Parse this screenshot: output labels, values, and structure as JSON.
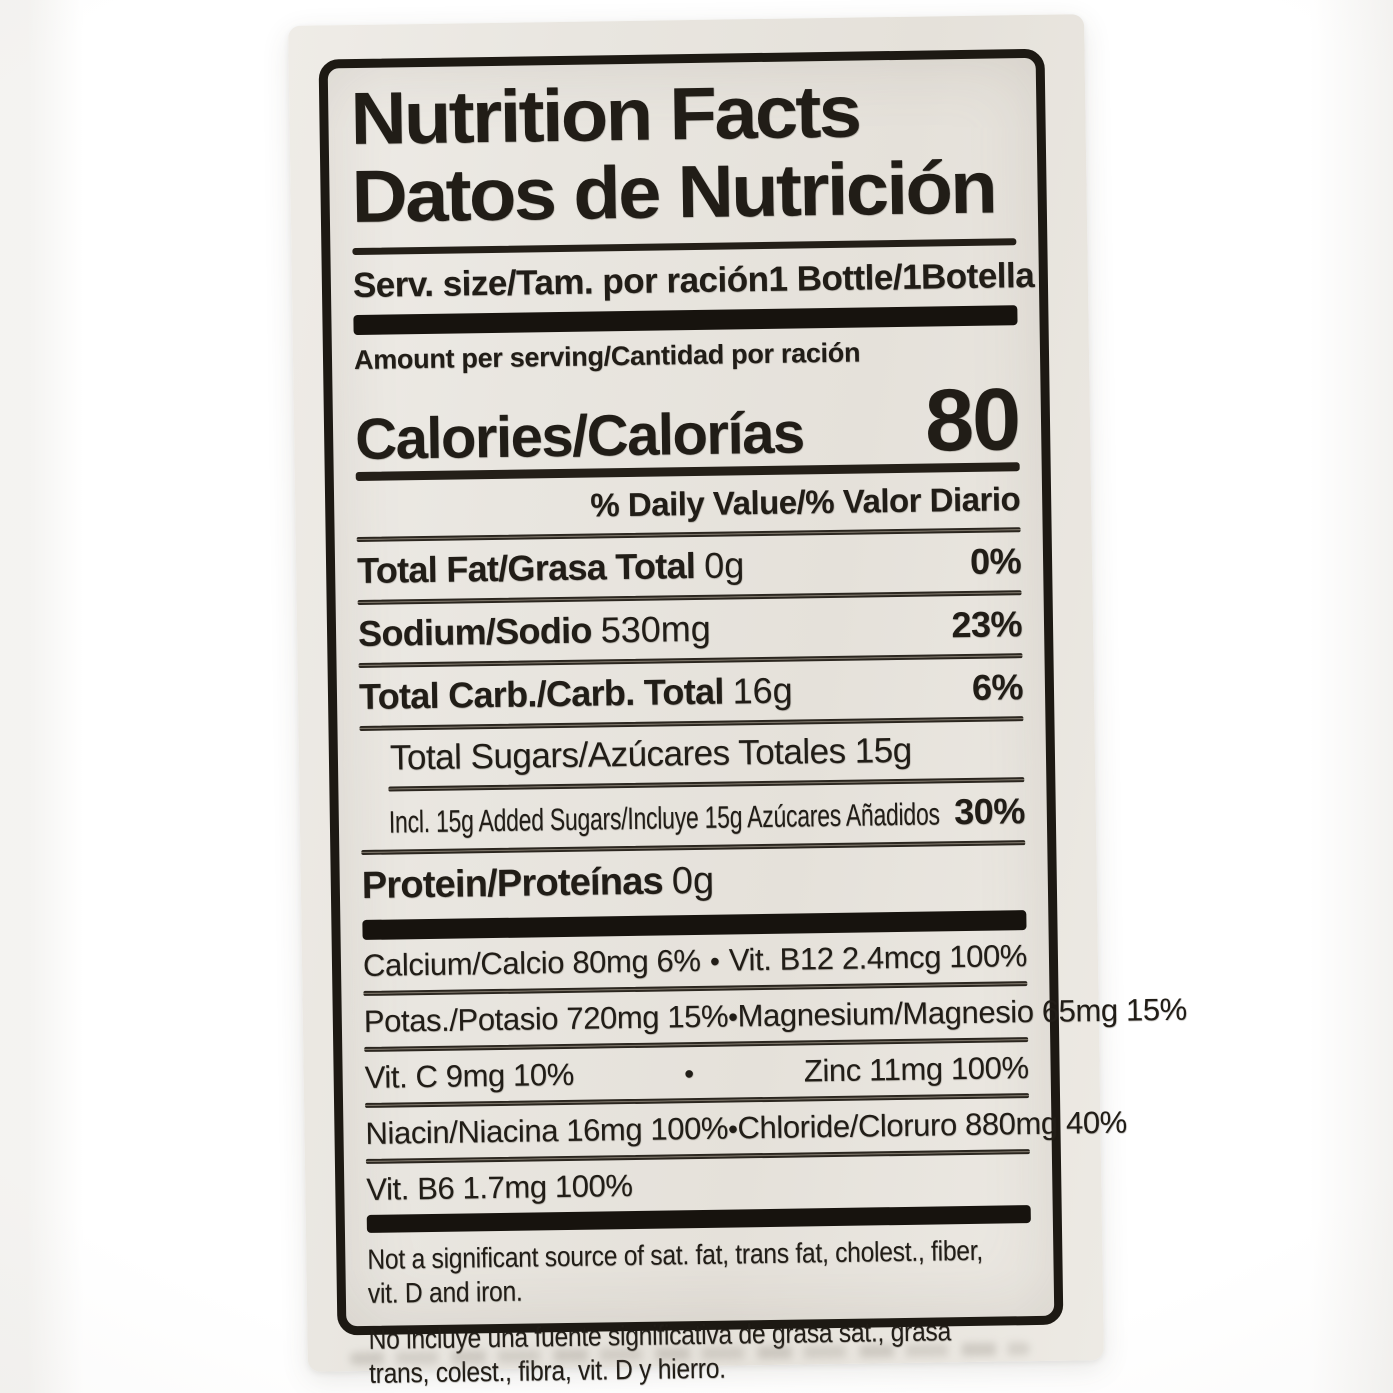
{
  "label": {
    "title_en": "Nutrition Facts",
    "title_es": "Datos de Nutrición",
    "serving_label": "Serv. size/Tam. por ración",
    "serving_value": "1 Bottle/1Botella",
    "amount_per_serving": "Amount per serving/Cantidad por ración",
    "calories_label": "Calories/Calorías",
    "calories_value": "80",
    "daily_value_header": "% Daily Value/% Valor Diario",
    "nutrients": [
      {
        "name": "Total Fat/Grasa Total",
        "amount": "0g",
        "dv": "0%"
      },
      {
        "name": "Sodium/Sodio",
        "amount": "530mg",
        "dv": "23%"
      },
      {
        "name": "Total Carb./Carb. Total",
        "amount": "16g",
        "dv": "6%"
      }
    ],
    "total_sugars": "Total Sugars/Azúcares Totales 15g",
    "added_sugars_text": "Incl. 15g Added Sugars/Incluye 15g Azúcares Añadidos",
    "added_sugars_dv": "30%",
    "protein_name": "Protein/Proteínas",
    "protein_amount": "0g",
    "micronutrients": [
      {
        "left": "Calcium/Calcio 80mg 6%",
        "bullet": "•",
        "right": "Vit. B12 2.4mcg 100%"
      },
      {
        "left": "Potas./Potasio 720mg 15%",
        "bullet": "•",
        "right": "Magnesium/Magnesio 65mg 15%"
      },
      {
        "left": "Vit. C 9mg 10%",
        "bullet": "•",
        "right": "Zinc 11mg 100%"
      },
      {
        "left": "Niacin/Niacina 16mg 100%",
        "bullet": "•",
        "right": "Chloride/Cloruro 880mg 40%"
      },
      {
        "left": "Vit. B6 1.7mg 100%",
        "bullet": "",
        "right": ""
      }
    ],
    "footnote_en": [
      "Not a significant source of sat. fat, trans fat, cholest., fiber,",
      "vit. D and iron."
    ],
    "footnote_es": [
      "No incluye una fuente significativa de grasa sat., grasa",
      "trans, colest., fibra, vit. D y hierro."
    ]
  },
  "colors": {
    "ink": "#211d17",
    "label_background": "#e8e5df",
    "page_background": "#ffffff"
  }
}
